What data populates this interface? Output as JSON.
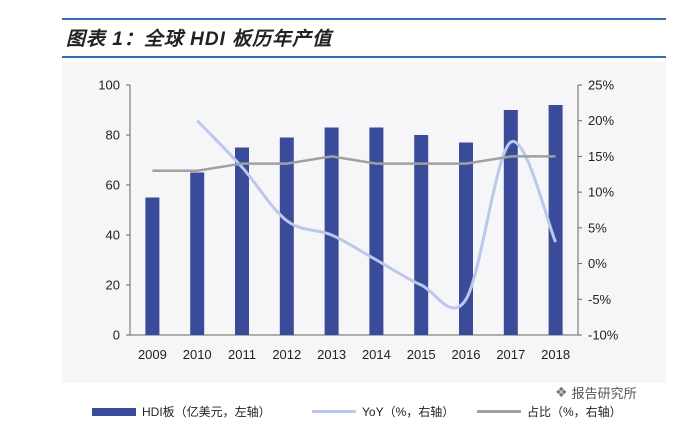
{
  "title": "图表 1：全球 HDI 板历年产值",
  "colors": {
    "rule": "#2f6fb3",
    "bar": "#3a4b9a",
    "yoy_line": "#bac8ec",
    "share_line": "#a0a0a0"
  },
  "legend": {
    "bar": "HDI板（亿美元，左轴）",
    "yoy": "YoY（%，右轴）",
    "share": "占比（%，右轴）"
  },
  "watermark": {
    "icon": "wechat-icon",
    "text": "报告研究所"
  },
  "chart_data": {
    "type": "bar",
    "categories": [
      "2009",
      "2010",
      "2011",
      "2012",
      "2013",
      "2014",
      "2015",
      "2016",
      "2017",
      "2018"
    ],
    "series": [
      {
        "name": "HDI板（亿美元，左轴）",
        "type": "bar",
        "axis": "left",
        "values": [
          55,
          65,
          75,
          79,
          83,
          83,
          80,
          77,
          90,
          92
        ]
      },
      {
        "name": "YoY（%，右轴）",
        "type": "line",
        "axis": "right",
        "values": [
          null,
          20,
          13.5,
          6,
          4,
          0.5,
          -3,
          -5,
          17,
          3
        ]
      },
      {
        "name": "占比（%，右轴）",
        "type": "line",
        "axis": "right",
        "values": [
          13,
          13,
          14,
          14,
          15,
          14,
          14,
          14,
          15,
          15
        ]
      }
    ],
    "yleft": {
      "min": 0,
      "max": 100,
      "ticks": [
        "0",
        "20",
        "40",
        "60",
        "80",
        "100"
      ]
    },
    "yright": {
      "min": -10,
      "max": 25,
      "ticks": [
        "-10%",
        "-5%",
        "0%",
        "5%",
        "10%",
        "15%",
        "20%",
        "25%"
      ]
    },
    "grid": false,
    "legend_position": "bottom"
  }
}
